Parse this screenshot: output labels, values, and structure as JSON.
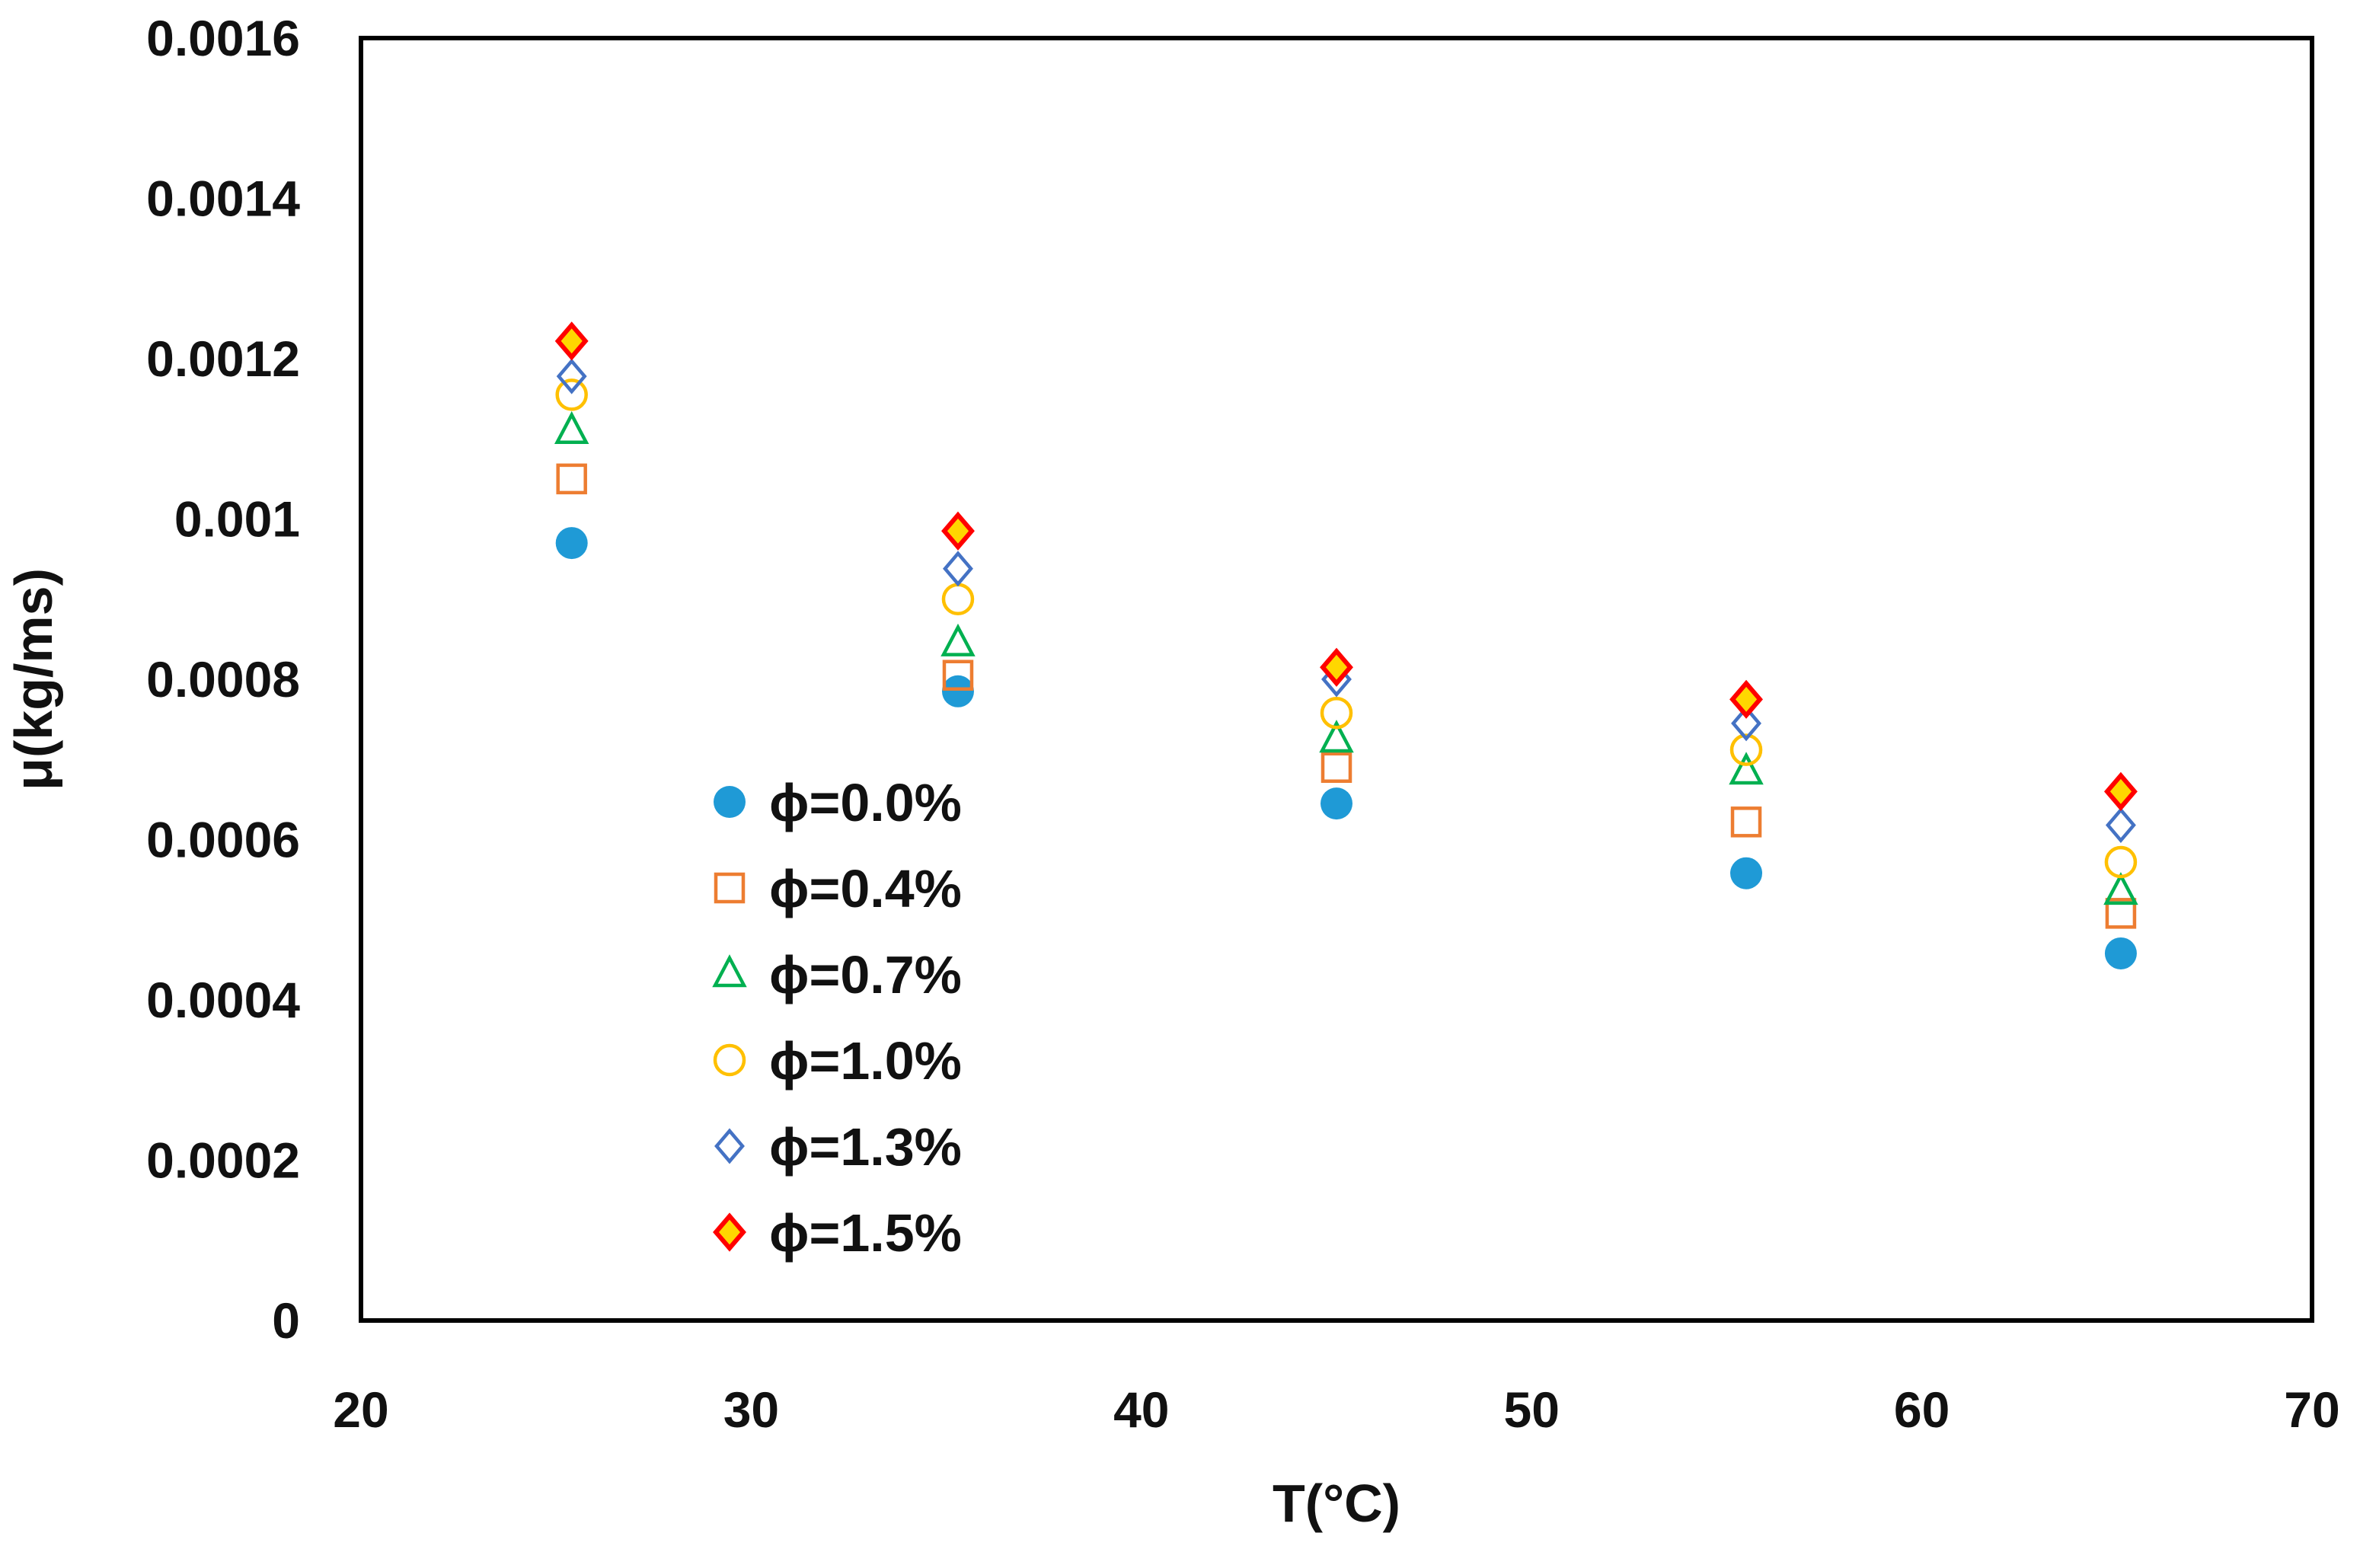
{
  "chart_data": {
    "type": "scatter",
    "title": "",
    "xlabel": "T(°C)",
    "ylabel": "μ(kg/ms)",
    "xlim": [
      20,
      70
    ],
    "ylim": [
      0,
      0.0016
    ],
    "x_ticks": [
      20,
      30,
      40,
      50,
      60,
      70
    ],
    "x_tick_labels": [
      "20",
      "30",
      "40",
      "50",
      "60",
      "70"
    ],
    "y_ticks": [
      0,
      0.0002,
      0.0004,
      0.0006,
      0.0008,
      0.001,
      0.0012,
      0.0014,
      0.0016
    ],
    "y_tick_labels": [
      "0",
      "0.0002",
      "0.0004",
      "0.0006",
      "0.0008",
      "0.001",
      "0.0012",
      "0.0014",
      "0.0016"
    ],
    "grid": false,
    "legend_position": "center-left",
    "series": [
      {
        "name": "ϕ=0.0%",
        "marker": "circle-filled",
        "color": "#1f9ad6",
        "fill": "#1f9ad6",
        "x": [
          25.4,
          35.3,
          45.0,
          55.5,
          65.1
        ],
        "y": [
          0.00097,
          0.000785,
          0.000645,
          0.000558,
          0.000458
        ]
      },
      {
        "name": "ϕ=0.4%",
        "marker": "square",
        "color": "#ed7d31",
        "fill": "none",
        "x": [
          25.4,
          35.3,
          45.0,
          55.5,
          65.1
        ],
        "y": [
          0.00105,
          0.000805,
          0.00069,
          0.000622,
          0.000508
        ]
      },
      {
        "name": "ϕ=0.7%",
        "marker": "triangle",
        "color": "#00b050",
        "fill": "none",
        "x": [
          25.4,
          35.3,
          45.0,
          55.5,
          65.1
        ],
        "y": [
          0.00111,
          0.000845,
          0.000725,
          0.000685,
          0.000535
        ]
      },
      {
        "name": "ϕ=1.0%",
        "marker": "circle",
        "color": "#ffc000",
        "fill": "none",
        "x": [
          25.4,
          35.3,
          45.0,
          55.5,
          65.1
        ],
        "y": [
          0.001155,
          0.0009,
          0.000758,
          0.000712,
          0.000572
        ]
      },
      {
        "name": "ϕ=1.3%",
        "marker": "diamond",
        "color": "#4472c4",
        "fill": "none",
        "x": [
          25.4,
          35.3,
          45.0,
          55.5,
          65.1
        ],
        "y": [
          0.001178,
          0.000938,
          0.0008,
          0.000745,
          0.000618
        ]
      },
      {
        "name": "ϕ=1.5%",
        "marker": "diamond-filled",
        "color": "#ff0000",
        "fill": "#ffd700",
        "x": [
          25.4,
          35.3,
          45.0,
          55.5,
          65.1
        ],
        "y": [
          0.001222,
          0.000985,
          0.000815,
          0.000775,
          0.00066
        ]
      }
    ]
  }
}
